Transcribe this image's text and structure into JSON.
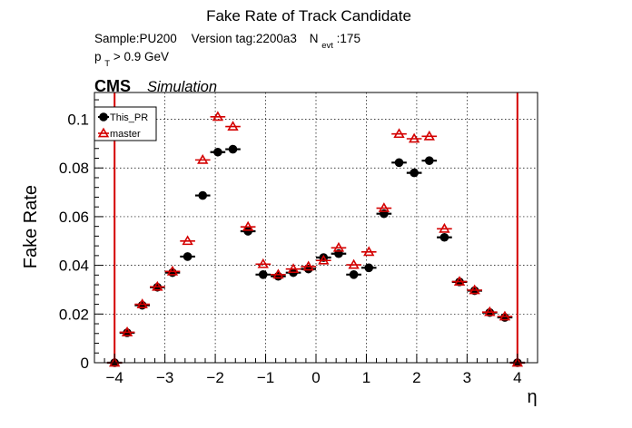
{
  "chart_data": {
    "type": "scatter",
    "title": "Fake Rate of Track Candidate",
    "info_line1": {
      "sample": "Sample:PU200",
      "version": "Version tag:2200a3",
      "nevt_main": "N",
      "nevt_sub": "evt",
      "nevt_value": ":175"
    },
    "info_line2": {
      "pt_main": "p",
      "pt_sub": "T",
      "pt_rest": " > 0.9 GeV"
    },
    "cms_label": "CMS",
    "simulation_label": "Simulation",
    "xlabel": "η",
    "ylabel": "Fake Rate",
    "xlim": [
      -4.4,
      4.4
    ],
    "ylim": [
      0,
      0.111
    ],
    "x_ticks": [
      -4,
      -3,
      -2,
      -1,
      0,
      1,
      2,
      3,
      4
    ],
    "x_tick_labels": [
      "−4",
      "−3",
      "−2",
      "−1",
      "0",
      "1",
      "2",
      "3",
      "4"
    ],
    "y_ticks": [
      0,
      0.02,
      0.04,
      0.06,
      0.08,
      0.1
    ],
    "y_tick_labels": [
      "0",
      "0.02",
      "0.04",
      "0.06",
      "0.08",
      "0.1"
    ],
    "grid": true,
    "legend_position": "top-left",
    "bin_half_width": 0.15,
    "eta_cut_lines": [
      -4,
      4
    ],
    "series": [
      {
        "name": "This_PR",
        "color": "#000000",
        "marker": "filled-circle",
        "x": [
          -4.0,
          -3.75,
          -3.45,
          -3.15,
          -2.85,
          -2.55,
          -2.25,
          -1.95,
          -1.65,
          -1.35,
          -1.05,
          -0.75,
          -0.45,
          -0.15,
          0.15,
          0.45,
          0.75,
          1.05,
          1.35,
          1.65,
          1.95,
          2.25,
          2.55,
          2.85,
          3.15,
          3.45,
          3.75,
          4.0
        ],
        "y": [
          0.0,
          0.0123,
          0.0236,
          0.031,
          0.037,
          0.0436,
          0.0687,
          0.0865,
          0.0877,
          0.054,
          0.0362,
          0.0355,
          0.037,
          0.0385,
          0.0432,
          0.0448,
          0.0362,
          0.039,
          0.0612,
          0.0822,
          0.078,
          0.083,
          0.0515,
          0.0332,
          0.0296,
          0.0206,
          0.0186,
          0.0
        ]
      },
      {
        "name": "master",
        "color": "#d40000",
        "marker": "open-triangle",
        "x": [
          -4.0,
          -3.75,
          -3.45,
          -3.15,
          -2.85,
          -2.55,
          -2.25,
          -1.95,
          -1.65,
          -1.35,
          -1.05,
          -0.75,
          -0.45,
          -0.15,
          0.15,
          0.45,
          0.75,
          1.05,
          1.35,
          1.65,
          1.95,
          2.25,
          2.55,
          2.85,
          3.15,
          3.45,
          3.75,
          4.0
        ],
        "y": [
          0.0,
          0.0125,
          0.024,
          0.0312,
          0.0375,
          0.05,
          0.0833,
          0.101,
          0.097,
          0.0558,
          0.0405,
          0.0362,
          0.0385,
          0.0395,
          0.042,
          0.0472,
          0.0402,
          0.0455,
          0.0635,
          0.094,
          0.092,
          0.093,
          0.055,
          0.0333,
          0.0298,
          0.0208,
          0.019,
          0.0
        ]
      }
    ]
  }
}
